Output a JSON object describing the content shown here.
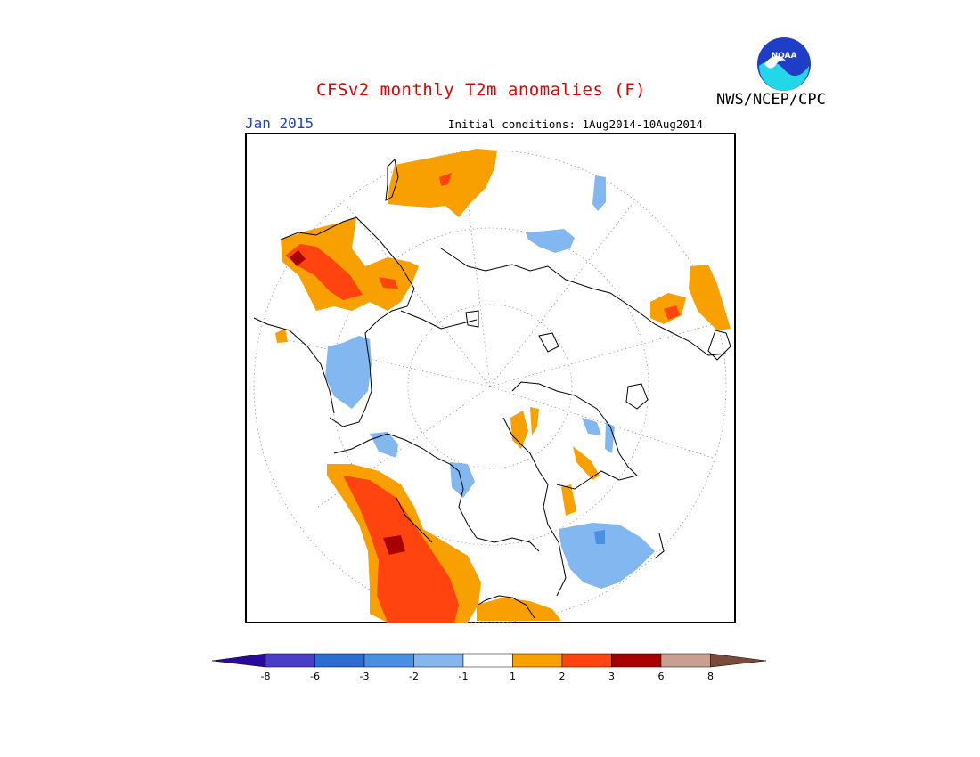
{
  "title": "CFSv2 monthly T2m anomalies (F)",
  "valid_month": "Jan 2015",
  "initial_conditions": "Initial conditions: 1Aug2014-10Aug2014",
  "agency": "NWS/NCEP/CPC",
  "logo_text": "NOAA",
  "legend": {
    "labels": [
      "-8",
      "-6",
      "-3",
      "-2",
      "-1",
      "1",
      "2",
      "3",
      "6",
      "8"
    ],
    "colors": [
      "#2a0a9c",
      "#4a3ec8",
      "#2c6ed0",
      "#4a90e2",
      "#82b7f0",
      "#ffffff",
      "#f8a000",
      "#ff4410",
      "#a80000",
      "#c9a090",
      "#7a4a3a"
    ]
  },
  "map": {
    "projection": "polar-stereographic",
    "anomaly_colors": {
      "warm1": "#f8a000",
      "warm2": "#ff4410",
      "warm3": "#a80000",
      "cool1": "#82b7f0",
      "cool2": "#4a90e2"
    }
  }
}
